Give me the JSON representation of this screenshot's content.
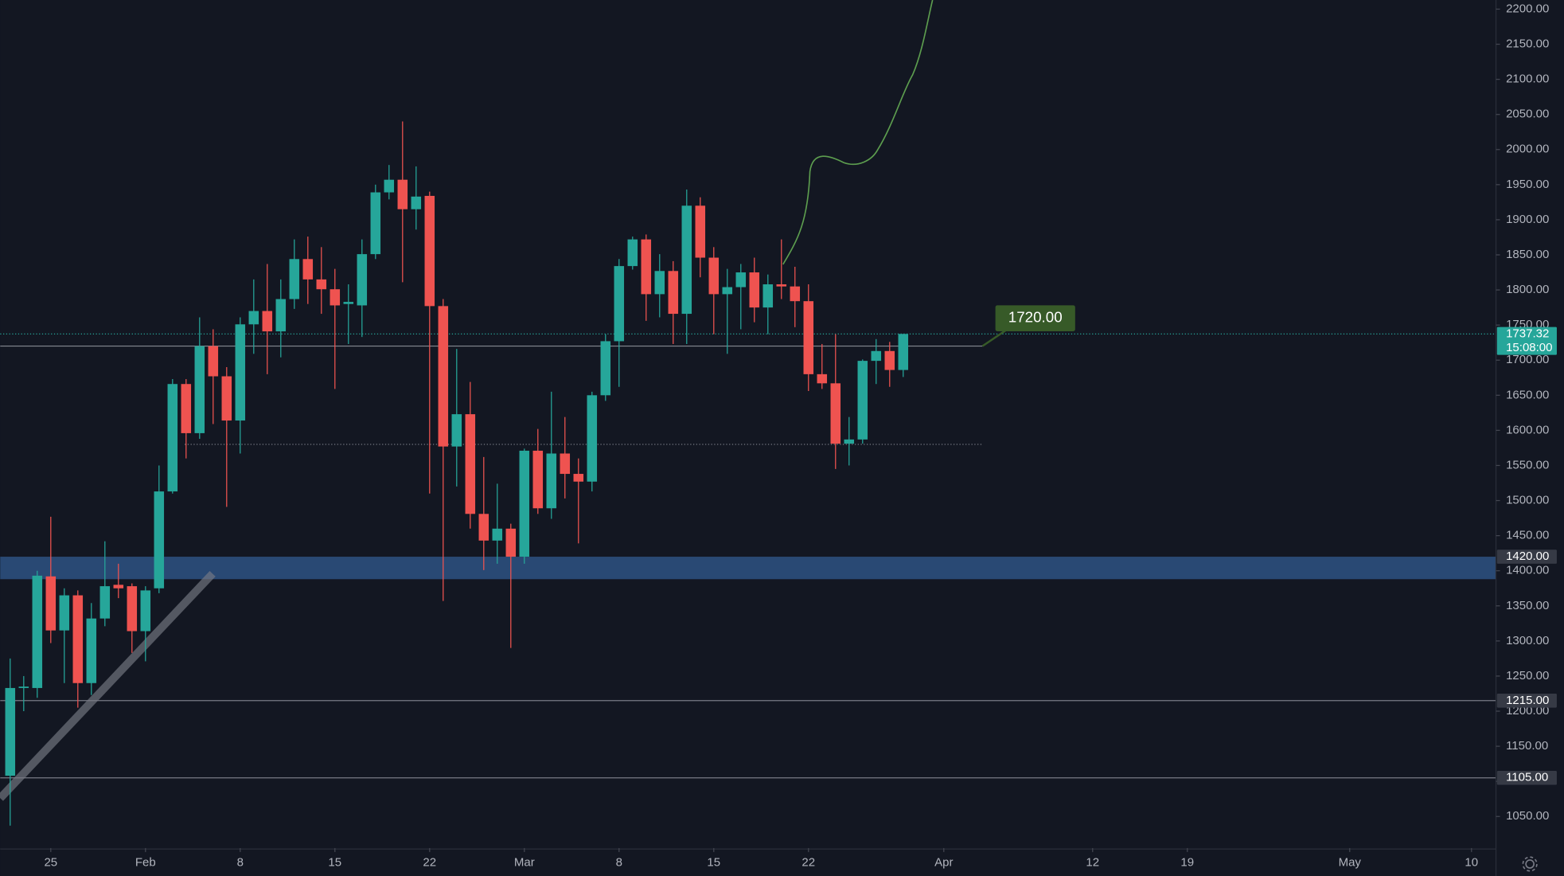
{
  "chart_data": {
    "type": "candlestick",
    "x": [
      "01-22",
      "01-23",
      "01-24",
      "01-25",
      "01-26",
      "01-27",
      "01-28",
      "01-29",
      "01-30",
      "01-31",
      "02-01",
      "02-02",
      "02-03",
      "02-04",
      "02-05",
      "02-06",
      "02-07",
      "02-08",
      "02-09",
      "02-10",
      "02-11",
      "02-12",
      "02-13",
      "02-14",
      "02-15",
      "02-16",
      "02-17",
      "02-18",
      "02-19",
      "02-20",
      "02-21",
      "02-22",
      "02-23",
      "02-24",
      "02-25",
      "02-26",
      "02-27",
      "02-28",
      "03-01",
      "03-02",
      "03-03",
      "03-04",
      "03-05",
      "03-06",
      "03-07",
      "03-08",
      "03-09",
      "03-10",
      "03-11",
      "03-12",
      "03-13",
      "03-14",
      "03-15",
      "03-16",
      "03-17",
      "03-18",
      "03-19",
      "03-20",
      "03-21",
      "03-22",
      "03-23",
      "03-24",
      "03-25",
      "03-26",
      "03-27",
      "03-28",
      "03-29"
    ],
    "open": [
      1108,
      1233,
      1233,
      1392,
      1315,
      1365,
      1240,
      1332,
      1380,
      1378,
      1314,
      1375,
      1513,
      1666,
      1596,
      1720,
      1677,
      1614,
      1751,
      1770,
      1741,
      1787,
      1844,
      1815,
      1801,
      1780,
      1778,
      1851,
      1939,
      1957,
      1915,
      1934,
      1777,
      1577,
      1623,
      1481,
      1443,
      1460,
      1420,
      1571,
      1489,
      1567,
      1538,
      1527,
      1650,
      1727,
      1834,
      1872,
      1794,
      1827,
      1766,
      1920,
      1846,
      1794,
      1804,
      1825,
      1775,
      1808,
      1805,
      1784,
      1680,
      1667,
      1581,
      1587,
      1699,
      1713,
      1686
    ],
    "high": [
      1275,
      1250,
      1400,
      1477,
      1375,
      1372,
      1354,
      1442,
      1410,
      1382,
      1378,
      1550,
      1673,
      1673,
      1761,
      1744,
      1690,
      1761,
      1815,
      1837,
      1815,
      1872,
      1876,
      1861,
      1830,
      1808,
      1872,
      1950,
      1978,
      2040,
      1976,
      1940,
      1787,
      1716,
      1669,
      1562,
      1524,
      1467,
      1574,
      1602,
      1655,
      1619,
      1560,
      1655,
      1737,
      1844,
      1876,
      1879,
      1851,
      1841,
      1943,
      1932,
      1861,
      1830,
      1837,
      1846,
      1822,
      1872,
      1833,
      1808,
      1723,
      1737,
      1619,
      1701,
      1730,
      1726,
      1737.32
    ],
    "low": [
      1037,
      1200,
      1219,
      1297,
      1240,
      1205,
      1223,
      1321,
      1361,
      1283,
      1271,
      1368,
      1510,
      1560,
      1588,
      1609,
      1491,
      1567,
      1709,
      1680,
      1704,
      1773,
      1780,
      1766,
      1659,
      1723,
      1733,
      1844,
      1929,
      1811,
      1886,
      1510,
      1357,
      1520,
      1460,
      1401,
      1410,
      1290,
      1410,
      1481,
      1474,
      1503,
      1439,
      1513,
      1642,
      1662,
      1829,
      1756,
      1761,
      1723,
      1723,
      1818,
      1737,
      1709,
      1744,
      1754,
      1737,
      1787,
      1747,
      1656,
      1659,
      1545,
      1550,
      1581,
      1666,
      1662,
      1676
    ],
    "close": [
      1233,
      1235,
      1393,
      1315,
      1365,
      1240,
      1332,
      1378,
      1375,
      1314,
      1372,
      1513,
      1666,
      1596,
      1720,
      1677,
      1614,
      1751,
      1770,
      1741,
      1787,
      1844,
      1815,
      1801,
      1778,
      1783,
      1851,
      1939,
      1957,
      1915,
      1933,
      1777,
      1577,
      1623,
      1481,
      1443,
      1460,
      1420,
      1571,
      1489,
      1567,
      1538,
      1527,
      1650,
      1727,
      1834,
      1872,
      1794,
      1827,
      1766,
      1920,
      1846,
      1794,
      1804,
      1825,
      1775,
      1808,
      1805,
      1784,
      1680,
      1667,
      1581,
      1587,
      1699,
      1713,
      1686,
      1737.32
    ],
    "up_color": "#26a69a",
    "down_color": "#ef5350",
    "xlim": [
      "01-22",
      "05-11"
    ],
    "xticks": [
      {
        "value": "01-25",
        "label": "25"
      },
      {
        "value": "02-01",
        "label": "Feb"
      },
      {
        "value": "02-08",
        "label": "8"
      },
      {
        "value": "02-15",
        "label": "15"
      },
      {
        "value": "02-22",
        "label": "22"
      },
      {
        "value": "03-01",
        "label": "Mar"
      },
      {
        "value": "03-08",
        "label": "8"
      },
      {
        "value": "03-15",
        "label": "15"
      },
      {
        "value": "03-22",
        "label": "22"
      },
      {
        "value": "04-01",
        "label": "Apr"
      },
      {
        "value": "04-12",
        "label": "12"
      },
      {
        "value": "04-19",
        "label": "19"
      },
      {
        "value": "05-01",
        "label": "May"
      },
      {
        "value": "05-10",
        "label": "10"
      }
    ],
    "ylim": [
      1005,
      2213
    ],
    "yticks": [
      {
        "value": 1050,
        "label": "1050.00"
      },
      {
        "value": 1100,
        "label": "1100.00"
      },
      {
        "value": 1150,
        "label": "1150.00"
      },
      {
        "value": 1200,
        "label": "1200.00"
      },
      {
        "value": 1250,
        "label": "1250.00"
      },
      {
        "value": 1300,
        "label": "1300.00"
      },
      {
        "value": 1350,
        "label": "1350.00"
      },
      {
        "value": 1400,
        "label": "1400.00"
      },
      {
        "value": 1450,
        "label": "1450.00"
      },
      {
        "value": 1500,
        "label": "1500.00"
      },
      {
        "value": 1550,
        "label": "1550.00"
      },
      {
        "value": 1600,
        "label": "1600.00"
      },
      {
        "value": 1650,
        "label": "1650.00"
      },
      {
        "value": 1700,
        "label": "1700.00"
      },
      {
        "value": 1750,
        "label": "1750.00"
      },
      {
        "value": 1800,
        "label": "1800.00"
      },
      {
        "value": 1850,
        "label": "1850.00"
      },
      {
        "value": 1900,
        "label": "1900.00"
      },
      {
        "value": 1950,
        "label": "1950.00"
      },
      {
        "value": 2000,
        "label": "2000.00"
      },
      {
        "value": 2050,
        "label": "2050.00"
      },
      {
        "value": 2100,
        "label": "2100.00"
      },
      {
        "value": 2150,
        "label": "2150.00"
      },
      {
        "value": 2200,
        "label": "2200.00"
      }
    ],
    "grid": false,
    "zone": {
      "low": 1388,
      "high": 1420,
      "label": "1420.00",
      "color": "#2e5282"
    },
    "levels": [
      {
        "value": 1215,
        "label": "1215.00"
      },
      {
        "value": 1105,
        "label": "1105.00"
      }
    ],
    "support_line": 1580,
    "callout": {
      "value": 1720,
      "label": "1720.00",
      "color": "#375a28"
    },
    "last_price": {
      "value": 1737.32,
      "label": "1737.32",
      "countdown": "15:08:00"
    }
  }
}
